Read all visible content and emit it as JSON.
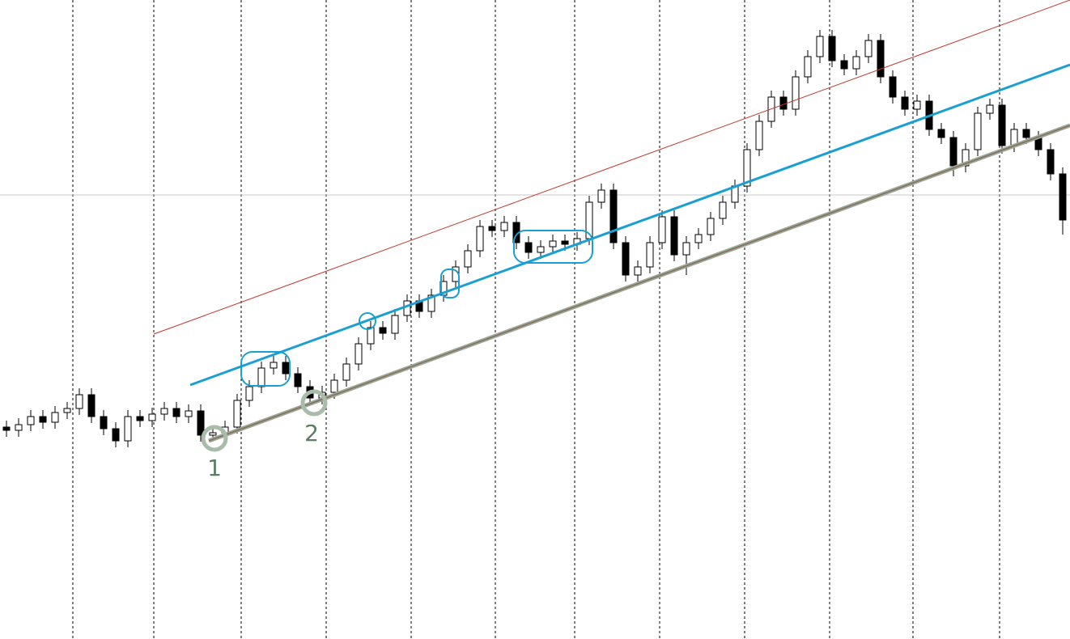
{
  "chart_data": {
    "type": "candlestick",
    "annotations": [
      "1",
      "2"
    ],
    "ylim": [
      0,
      790
    ],
    "open": [
      262,
      258,
      265,
      275,
      268,
      280,
      285,
      302,
      275,
      260,
      245,
      275,
      270,
      278,
      285,
      275,
      282,
      252,
      255,
      262,
      295,
      312,
      335,
      342,
      328,
      312,
      298,
      305,
      320,
      340,
      365,
      385,
      378,
      400,
      418,
      405,
      425,
      442,
      460,
      480,
      510,
      505,
      515,
      490,
      478,
      485,
      492,
      488,
      495,
      540,
      555,
      490,
      450,
      460,
      490,
      522,
      475,
      490,
      500,
      520,
      540,
      560,
      605,
      640,
      670,
      655,
      695,
      720,
      745,
      715,
      705,
      720,
      740,
      695,
      670,
      655,
      665,
      630,
      620,
      585,
      605,
      650,
      660,
      610,
      630,
      620,
      605,
      575
    ],
    "high": [
      270,
      273,
      283,
      283,
      288,
      293,
      310,
      310,
      283,
      268,
      283,
      283,
      286,
      293,
      293,
      290,
      290,
      263,
      270,
      303,
      320,
      343,
      350,
      350,
      336,
      320,
      313,
      328,
      348,
      373,
      393,
      393,
      408,
      426,
      426,
      433,
      450,
      468,
      488,
      518,
      518,
      523,
      523,
      498,
      493,
      500,
      500,
      503,
      548,
      563,
      563,
      498,
      468,
      498,
      530,
      530,
      498,
      508,
      528,
      548,
      568,
      613,
      648,
      678,
      678,
      703,
      728,
      753,
      753,
      723,
      728,
      748,
      748,
      703,
      678,
      673,
      673,
      638,
      628,
      613,
      658,
      668,
      668,
      638,
      638,
      628,
      613,
      583
    ],
    "low": [
      250,
      250,
      257,
      260,
      260,
      272,
      277,
      267,
      252,
      237,
      237,
      262,
      262,
      270,
      267,
      267,
      244,
      244,
      247,
      254,
      287,
      304,
      327,
      320,
      304,
      290,
      290,
      297,
      312,
      332,
      357,
      370,
      370,
      392,
      397,
      397,
      417,
      434,
      452,
      472,
      497,
      497,
      482,
      470,
      470,
      477,
      480,
      480,
      487,
      532,
      482,
      442,
      442,
      452,
      482,
      467,
      450,
      482,
      492,
      512,
      532,
      552,
      597,
      632,
      647,
      647,
      687,
      712,
      707,
      697,
      697,
      712,
      687,
      662,
      647,
      647,
      622,
      612,
      572,
      577,
      597,
      642,
      600,
      602,
      612,
      597,
      567,
      500
    ],
    "close": [
      258,
      265,
      275,
      268,
      280,
      285,
      302,
      275,
      260,
      245,
      275,
      270,
      278,
      285,
      275,
      282,
      252,
      255,
      262,
      295,
      312,
      335,
      342,
      328,
      312,
      298,
      305,
      320,
      340,
      365,
      385,
      378,
      400,
      418,
      405,
      425,
      442,
      460,
      480,
      510,
      505,
      515,
      490,
      478,
      485,
      492,
      488,
      495,
      540,
      555,
      490,
      450,
      460,
      490,
      522,
      475,
      490,
      500,
      520,
      540,
      560,
      605,
      640,
      670,
      655,
      695,
      720,
      745,
      715,
      705,
      720,
      740,
      695,
      670,
      655,
      665,
      630,
      620,
      585,
      605,
      650,
      660,
      610,
      630,
      620,
      605,
      575,
      518
    ]
  }
}
